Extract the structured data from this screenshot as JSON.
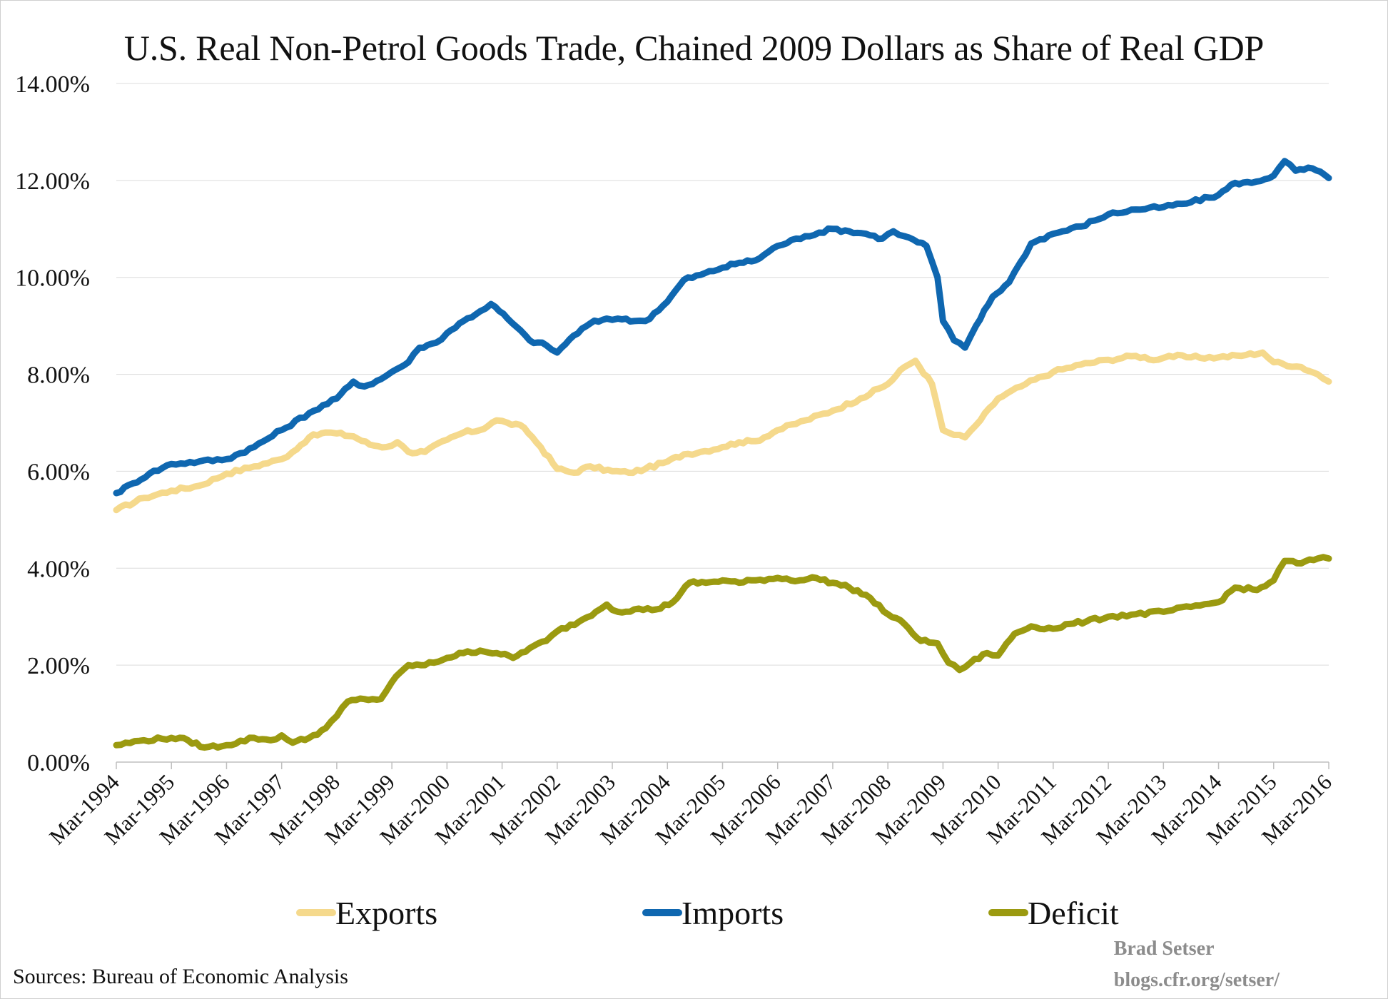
{
  "chart_data": {
    "type": "line",
    "title": "U.S. Real Non-Petrol Goods Trade, Chained 2009 Dollars as Share of Real GDP",
    "ylim": [
      0,
      14
    ],
    "y_ticks": [
      "0.00%",
      "2.00%",
      "4.00%",
      "6.00%",
      "8.00%",
      "10.00%",
      "12.00%",
      "14.00%"
    ],
    "x_ticks": [
      "Mar-1994",
      "Mar-1995",
      "Mar-1996",
      "Mar-1997",
      "Mar-1998",
      "Mar-1999",
      "Mar-2000",
      "Mar-2001",
      "Mar-2002",
      "Mar-2003",
      "Mar-2004",
      "Mar-2005",
      "Mar-2006",
      "Mar-2007",
      "Mar-2008",
      "Mar-2009",
      "Mar-2010",
      "Mar-2011",
      "Mar-2012",
      "Mar-2013",
      "Mar-2014",
      "Mar-2015",
      "Mar-2016"
    ],
    "xlim": [
      1994.0,
      2016.0
    ],
    "grid": "horizontal",
    "legend_position": "bottom",
    "series": [
      {
        "name": "Exports",
        "color": "#f5d98c",
        "points": [
          [
            1994.0,
            5.2
          ],
          [
            1994.5,
            5.45
          ],
          [
            1995.0,
            5.6
          ],
          [
            1995.5,
            5.7
          ],
          [
            1996.0,
            5.95
          ],
          [
            1996.5,
            6.1
          ],
          [
            1997.0,
            6.25
          ],
          [
            1997.2,
            6.4
          ],
          [
            1997.5,
            6.7
          ],
          [
            1997.8,
            6.8
          ],
          [
            1998.0,
            6.78
          ],
          [
            1998.3,
            6.72
          ],
          [
            1998.6,
            6.55
          ],
          [
            1998.9,
            6.5
          ],
          [
            1999.1,
            6.6
          ],
          [
            1999.3,
            6.4
          ],
          [
            1999.6,
            6.4
          ],
          [
            2000.0,
            6.65
          ],
          [
            2000.3,
            6.8
          ],
          [
            2000.6,
            6.85
          ],
          [
            2000.9,
            7.05
          ],
          [
            2001.1,
            7.0
          ],
          [
            2001.4,
            6.9
          ],
          [
            2001.7,
            6.5
          ],
          [
            2002.0,
            6.05
          ],
          [
            2002.3,
            5.97
          ],
          [
            2002.6,
            6.1
          ],
          [
            2003.0,
            6.0
          ],
          [
            2003.3,
            5.97
          ],
          [
            2003.6,
            6.05
          ],
          [
            2004.0,
            6.2
          ],
          [
            2004.3,
            6.35
          ],
          [
            2004.6,
            6.4
          ],
          [
            2005.0,
            6.5
          ],
          [
            2005.3,
            6.6
          ],
          [
            2005.6,
            6.62
          ],
          [
            2006.0,
            6.85
          ],
          [
            2006.5,
            7.05
          ],
          [
            2007.0,
            7.25
          ],
          [
            2007.5,
            7.5
          ],
          [
            2008.0,
            7.8
          ],
          [
            2008.3,
            8.15
          ],
          [
            2008.5,
            8.28
          ],
          [
            2008.8,
            7.8
          ],
          [
            2009.0,
            6.85
          ],
          [
            2009.2,
            6.75
          ],
          [
            2009.4,
            6.7
          ],
          [
            2009.6,
            6.95
          ],
          [
            2010.0,
            7.5
          ],
          [
            2010.5,
            7.8
          ],
          [
            2011.0,
            8.05
          ],
          [
            2011.5,
            8.2
          ],
          [
            2012.0,
            8.3
          ],
          [
            2012.5,
            8.38
          ],
          [
            2012.9,
            8.3
          ],
          [
            2013.1,
            8.38
          ],
          [
            2013.5,
            8.35
          ],
          [
            2014.0,
            8.35
          ],
          [
            2014.5,
            8.4
          ],
          [
            2014.8,
            8.45
          ],
          [
            2015.0,
            8.25
          ],
          [
            2015.5,
            8.15
          ],
          [
            2015.8,
            8.0
          ],
          [
            2016.0,
            7.85
          ]
        ]
      },
      {
        "name": "Imports",
        "color": "#0f67b0",
        "points": [
          [
            1994.0,
            5.55
          ],
          [
            1994.3,
            5.75
          ],
          [
            1994.6,
            5.95
          ],
          [
            1995.0,
            6.15
          ],
          [
            1995.5,
            6.2
          ],
          [
            1996.0,
            6.25
          ],
          [
            1996.5,
            6.5
          ],
          [
            1997.0,
            6.85
          ],
          [
            1997.5,
            7.2
          ],
          [
            1998.0,
            7.5
          ],
          [
            1998.3,
            7.85
          ],
          [
            1998.5,
            7.75
          ],
          [
            1998.8,
            7.9
          ],
          [
            1999.0,
            8.05
          ],
          [
            1999.3,
            8.25
          ],
          [
            1999.5,
            8.55
          ],
          [
            1999.8,
            8.65
          ],
          [
            2000.0,
            8.85
          ],
          [
            2000.3,
            9.1
          ],
          [
            2000.6,
            9.3
          ],
          [
            2000.8,
            9.45
          ],
          [
            2001.1,
            9.15
          ],
          [
            2001.5,
            8.7
          ],
          [
            2001.8,
            8.6
          ],
          [
            2002.0,
            8.45
          ],
          [
            2002.3,
            8.8
          ],
          [
            2002.6,
            9.05
          ],
          [
            2002.9,
            9.15
          ],
          [
            2003.1,
            9.15
          ],
          [
            2003.4,
            9.1
          ],
          [
            2003.6,
            9.1
          ],
          [
            2004.0,
            9.5
          ],
          [
            2004.3,
            9.95
          ],
          [
            2004.6,
            10.05
          ],
          [
            2005.0,
            10.2
          ],
          [
            2005.3,
            10.3
          ],
          [
            2005.6,
            10.35
          ],
          [
            2006.0,
            10.65
          ],
          [
            2006.5,
            10.85
          ],
          [
            2007.0,
            11.0
          ],
          [
            2007.3,
            10.95
          ],
          [
            2007.6,
            10.9
          ],
          [
            2007.9,
            10.8
          ],
          [
            2008.1,
            10.95
          ],
          [
            2008.3,
            10.85
          ],
          [
            2008.7,
            10.65
          ],
          [
            2008.9,
            10.0
          ],
          [
            2009.0,
            9.1
          ],
          [
            2009.2,
            8.7
          ],
          [
            2009.4,
            8.55
          ],
          [
            2009.6,
            9.0
          ],
          [
            2009.9,
            9.6
          ],
          [
            2010.2,
            9.9
          ],
          [
            2010.4,
            10.3
          ],
          [
            2010.6,
            10.7
          ],
          [
            2011.0,
            10.9
          ],
          [
            2011.5,
            11.05
          ],
          [
            2012.0,
            11.3
          ],
          [
            2012.5,
            11.4
          ],
          [
            2013.0,
            11.45
          ],
          [
            2013.5,
            11.55
          ],
          [
            2014.0,
            11.7
          ],
          [
            2014.3,
            11.95
          ],
          [
            2014.6,
            11.95
          ],
          [
            2015.0,
            12.1
          ],
          [
            2015.2,
            12.4
          ],
          [
            2015.4,
            12.2
          ],
          [
            2015.7,
            12.25
          ],
          [
            2016.0,
            12.05
          ]
        ]
      },
      {
        "name": "Deficit",
        "color": "#9b9a10",
        "points": [
          [
            1994.0,
            0.35
          ],
          [
            1994.5,
            0.45
          ],
          [
            1995.0,
            0.5
          ],
          [
            1995.3,
            0.45
          ],
          [
            1995.6,
            0.3
          ],
          [
            1996.0,
            0.35
          ],
          [
            1996.5,
            0.5
          ],
          [
            1996.8,
            0.45
          ],
          [
            1997.0,
            0.55
          ],
          [
            1997.2,
            0.4
          ],
          [
            1997.5,
            0.5
          ],
          [
            1997.8,
            0.7
          ],
          [
            1998.0,
            0.95
          ],
          [
            1998.2,
            1.25
          ],
          [
            1998.5,
            1.3
          ],
          [
            1998.8,
            1.3
          ],
          [
            1999.0,
            1.65
          ],
          [
            1999.3,
            2.0
          ],
          [
            1999.6,
            2.0
          ],
          [
            2000.0,
            2.15
          ],
          [
            2000.3,
            2.25
          ],
          [
            2000.6,
            2.3
          ],
          [
            2000.9,
            2.25
          ],
          [
            2001.2,
            2.15
          ],
          [
            2001.5,
            2.35
          ],
          [
            2001.8,
            2.5
          ],
          [
            2002.0,
            2.7
          ],
          [
            2002.4,
            2.9
          ],
          [
            2002.7,
            3.1
          ],
          [
            2002.9,
            3.25
          ],
          [
            2003.1,
            3.1
          ],
          [
            2003.4,
            3.15
          ],
          [
            2003.8,
            3.15
          ],
          [
            2004.1,
            3.3
          ],
          [
            2004.4,
            3.7
          ],
          [
            2004.7,
            3.7
          ],
          [
            2005.0,
            3.75
          ],
          [
            2005.3,
            3.7
          ],
          [
            2005.6,
            3.75
          ],
          [
            2006.0,
            3.8
          ],
          [
            2006.4,
            3.75
          ],
          [
            2006.7,
            3.8
          ],
          [
            2007.0,
            3.7
          ],
          [
            2007.3,
            3.6
          ],
          [
            2007.6,
            3.45
          ],
          [
            2008.0,
            3.05
          ],
          [
            2008.3,
            2.85
          ],
          [
            2008.6,
            2.5
          ],
          [
            2008.9,
            2.45
          ],
          [
            2009.1,
            2.05
          ],
          [
            2009.3,
            1.9
          ],
          [
            2009.5,
            2.05
          ],
          [
            2009.8,
            2.25
          ],
          [
            2010.0,
            2.2
          ],
          [
            2010.3,
            2.65
          ],
          [
            2010.6,
            2.8
          ],
          [
            2011.0,
            2.75
          ],
          [
            2011.3,
            2.85
          ],
          [
            2011.6,
            2.9
          ],
          [
            2012.0,
            3.0
          ],
          [
            2012.5,
            3.05
          ],
          [
            2013.0,
            3.1
          ],
          [
            2013.5,
            3.2
          ],
          [
            2014.0,
            3.3
          ],
          [
            2014.3,
            3.6
          ],
          [
            2014.7,
            3.55
          ],
          [
            2015.0,
            3.75
          ],
          [
            2015.2,
            4.15
          ],
          [
            2015.5,
            4.1
          ],
          [
            2015.8,
            4.2
          ],
          [
            2016.0,
            4.2
          ]
        ]
      }
    ]
  },
  "source_text": "Sources: Bureau of Economic Analysis",
  "credit": {
    "name": "Brad Setser",
    "site": "blogs.cfr.org/setser/"
  }
}
